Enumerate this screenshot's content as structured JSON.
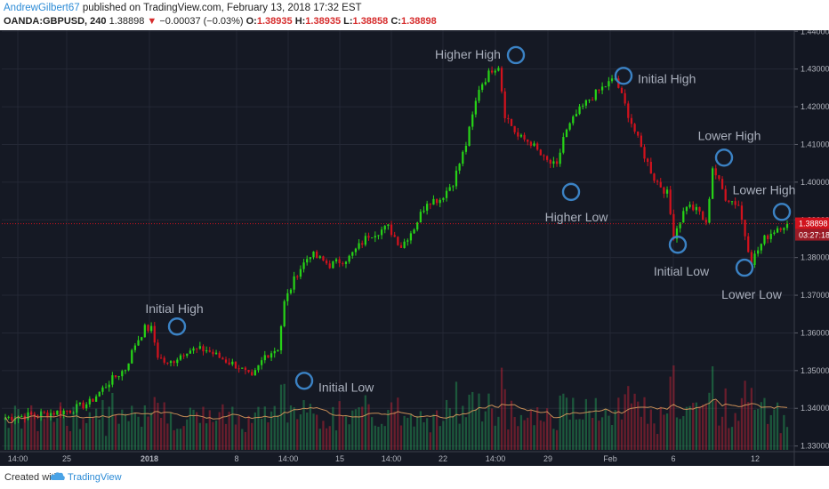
{
  "header": {
    "author": "AndrewGilbert67",
    "published": "published on TradingView.com, February 13, 2018 17:32 EST",
    "symbol": "OANDA:GBPUSD, 240",
    "last": "1.38898",
    "arrow": "▼",
    "change": "−0.00037 (−0.03%)",
    "o_label": "O:",
    "o_value": "1.38935",
    "h_label": "H:",
    "h_value": "1.38935",
    "l_label": "L:",
    "l_value": "1.38858",
    "c_label": "C:",
    "c_value": "1.38898"
  },
  "footer": {
    "created": "Created with",
    "brand": "TradingView"
  },
  "colors": {
    "background": "#151924",
    "grid": "#242835",
    "up": "#27d117",
    "down": "#d1121d",
    "annotation_circle": "#3b82c4",
    "annotation_text": "#aab0bd",
    "ma": "#c88e57",
    "price_line": "#d1121d"
  },
  "chart_data": {
    "type": "candlestick",
    "y_axis_ticks": [
      "1.44000",
      "1.43000",
      "1.42000",
      "1.41000",
      "1.40000",
      "1.39000",
      "1.38000",
      "1.37000",
      "1.36000",
      "1.35000",
      "1.34000",
      "1.33000"
    ],
    "y_axis_range": [
      1.3285,
      1.4403
    ],
    "x_axis_ticks": [
      "14:00",
      "25",
      "2018",
      "8",
      "14:00",
      "15",
      "14:00",
      "22",
      "14:00",
      "29",
      "Feb",
      "6",
      "12"
    ],
    "current_price": "1.38898",
    "countdown": "03:27:18",
    "annotations": [
      {
        "label": "Initial High",
        "price": 1.3617
      },
      {
        "label": "Initial Low",
        "price": 1.3473
      },
      {
        "label": "Higher High",
        "price": 1.4337
      },
      {
        "label": "Higher Low",
        "price": 1.3974
      },
      {
        "label": "Initial High",
        "price": 1.4282
      },
      {
        "label": "Initial Low",
        "price": 1.3834
      },
      {
        "label": "Lower High",
        "price": 1.4065
      },
      {
        "label": "Lower Low",
        "price": 1.3773
      },
      {
        "label": "Lower High",
        "price": 1.3921
      }
    ],
    "price_anchors": [
      [
        0,
        1.3375
      ],
      [
        12,
        1.3385
      ],
      [
        20,
        1.3395
      ],
      [
        26,
        1.3415
      ],
      [
        32,
        1.347
      ],
      [
        37,
        1.3505
      ],
      [
        40,
        1.357
      ],
      [
        43,
        1.3612
      ],
      [
        45,
        1.361
      ],
      [
        47,
        1.354
      ],
      [
        50,
        1.3515
      ],
      [
        56,
        1.3555
      ],
      [
        62,
        1.3555
      ],
      [
        66,
        1.3535
      ],
      [
        72,
        1.351
      ],
      [
        76,
        1.3478
      ],
      [
        80,
        1.354
      ],
      [
        84,
        1.356
      ],
      [
        86,
        1.368
      ],
      [
        90,
        1.376
      ],
      [
        94,
        1.381
      ],
      [
        98,
        1.379
      ],
      [
        100,
        1.378
      ],
      [
        106,
        1.38
      ],
      [
        112,
        1.386
      ],
      [
        118,
        1.388
      ],
      [
        122,
        1.383
      ],
      [
        126,
        1.388
      ],
      [
        130,
        1.395
      ],
      [
        134,
        1.3955
      ],
      [
        138,
        1.4
      ],
      [
        142,
        1.41
      ],
      [
        146,
        1.425
      ],
      [
        150,
        1.43
      ],
      [
        152,
        1.431
      ],
      [
        154,
        1.418
      ],
      [
        158,
        1.412
      ],
      [
        162,
        1.4105
      ],
      [
        166,
        1.406
      ],
      [
        170,
        1.404
      ],
      [
        172,
        1.412
      ],
      [
        176,
        1.418
      ],
      [
        180,
        1.422
      ],
      [
        184,
        1.425
      ],
      [
        188,
        1.4275
      ],
      [
        192,
        1.418
      ],
      [
        196,
        1.409
      ],
      [
        200,
        1.401
      ],
      [
        204,
        1.397
      ],
      [
        206,
        1.386
      ],
      [
        210,
        1.394
      ],
      [
        214,
        1.392
      ],
      [
        216,
        1.3885
      ],
      [
        218,
        1.404
      ],
      [
        222,
        1.396
      ],
      [
        226,
        1.394
      ],
      [
        228,
        1.386
      ],
      [
        230,
        1.379
      ],
      [
        234,
        1.385
      ],
      [
        238,
        1.388
      ],
      [
        241,
        1.389
      ]
    ]
  }
}
